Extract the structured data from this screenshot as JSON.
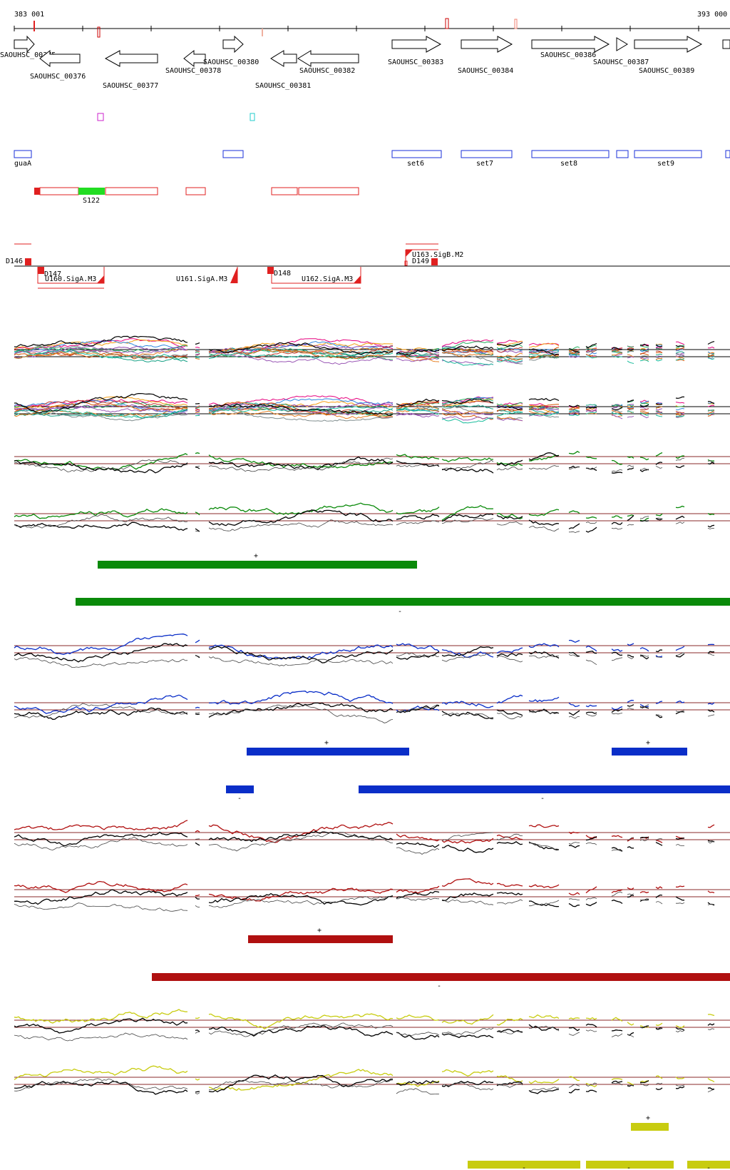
{
  "coord_start": "383 001",
  "coord_end": "393 000",
  "genes": [
    {
      "label": "SAOUHSC_00375"
    },
    {
      "label": "SAOUHSC_00376"
    },
    {
      "label": "SAOUHSC_00377"
    },
    {
      "label": "SAOUHSC_00378"
    },
    {
      "label": "SAOUHSC_00380"
    },
    {
      "label": "SAOUHSC_00381"
    },
    {
      "label": "SAOUHSC_00382"
    },
    {
      "label": "SAOUHSC_00383"
    },
    {
      "label": "SAOUHSC_00384"
    },
    {
      "label": "SAOUHSC_00386"
    },
    {
      "label": "SAOUHSC_00387"
    },
    {
      "label": "SAOUHSC_00389"
    }
  ],
  "operons": [
    {
      "label": "guaA"
    },
    {
      "label": "set6"
    },
    {
      "label": "set7"
    },
    {
      "label": "set8"
    },
    {
      "label": "set9"
    }
  ],
  "segment_label": "S122",
  "features": [
    {
      "label": "D146"
    },
    {
      "label": "D147"
    },
    {
      "label": "U160.SigA.M3"
    },
    {
      "label": "U161.SigA.M3"
    },
    {
      "label": "D148"
    },
    {
      "label": "U162.SigA.M3"
    },
    {
      "label": "U163.SigB.M2"
    },
    {
      "label": "D149"
    }
  ],
  "strand_plus": "+",
  "strand_minus": "-",
  "colors": {
    "gene_outline": "#000000",
    "operon": "#1a2fd8",
    "segment": "#e02020",
    "segment_highlight": "#22dd22",
    "marker_magenta": "#cc22cc",
    "marker_cyan": "#22cccc",
    "green": "#0a8a0a",
    "blue": "#0a2ec8",
    "red": "#b01010",
    "yellow": "#c8cc10",
    "refline": "#8a2a2a"
  }
}
